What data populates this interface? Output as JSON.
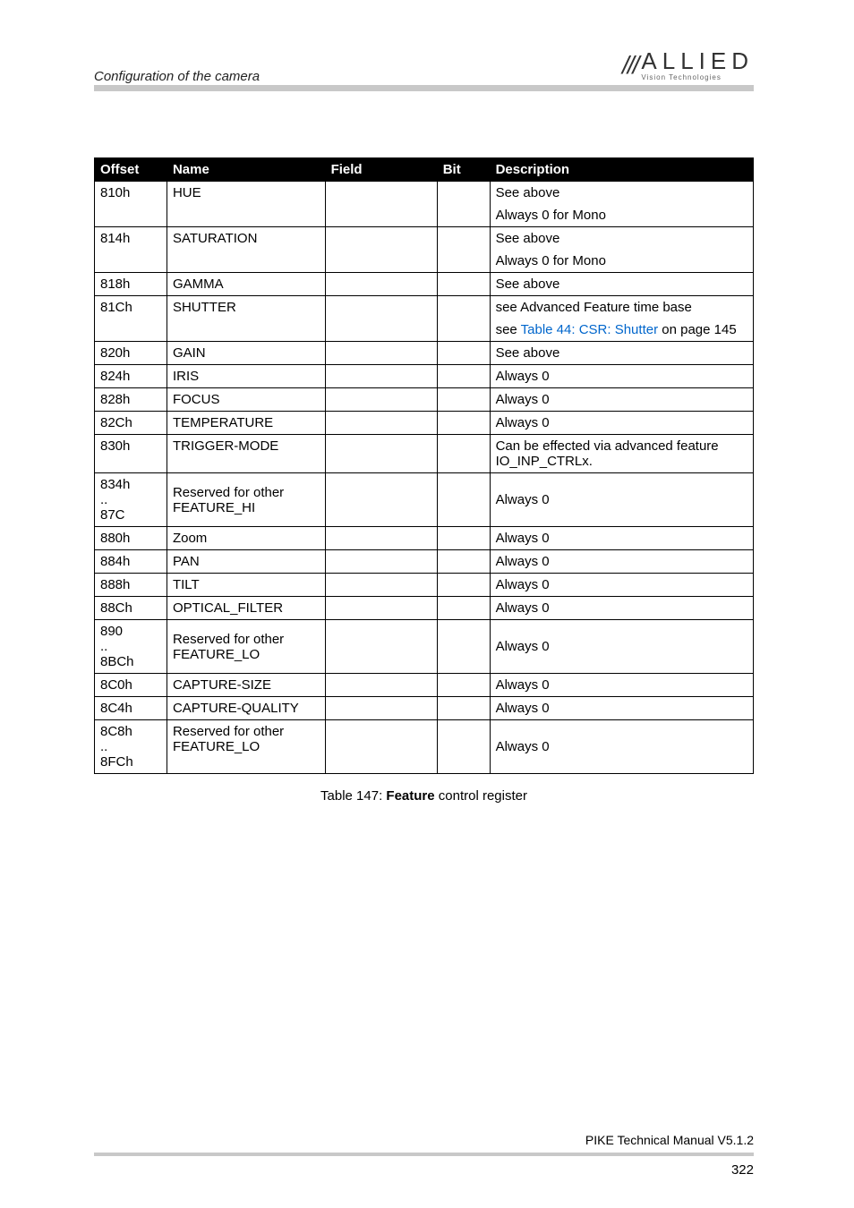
{
  "header": {
    "section_title": "Configuration of the camera",
    "logo_slashes": "///",
    "logo_main": "ALLIED",
    "logo_sub": "Vision Technologies"
  },
  "table": {
    "headers": {
      "offset": "Offset",
      "name": "Name",
      "field": "Field",
      "bit": "Bit",
      "description": "Description"
    },
    "col_widths": [
      "11%",
      "24%",
      "17%",
      "8%",
      "40%"
    ],
    "rows": [
      {
        "offset": "810h",
        "name": "HUE",
        "desc1": "See above",
        "desc2": "Always 0 for Mono"
      },
      {
        "offset": "814h",
        "name": "SATURATION",
        "desc1": "See above",
        "desc2": "Always 0 for Mono"
      },
      {
        "offset": "818h",
        "name": "GAMMA",
        "desc1": "See above"
      },
      {
        "offset": "81Ch",
        "name": "SHUTTER",
        "desc1": "see Advanced Feature time base",
        "desc2_pre": "see ",
        "desc2_link": "Table 44: CSR: Shutter",
        "desc2_post": " on page 145"
      },
      {
        "offset": "820h",
        "name": "GAIN",
        "desc1": "See above"
      },
      {
        "offset": "824h",
        "name": "IRIS",
        "desc1": "Always 0"
      },
      {
        "offset": "828h",
        "name": "FOCUS",
        "desc1": "Always 0"
      },
      {
        "offset": "82Ch",
        "name": "TEMPERATURE",
        "desc1": "Always 0"
      },
      {
        "offset": "830h",
        "name": "TRIGGER-MODE",
        "desc1": "Can be effected via advanced feature IO_INP_CTRLx."
      },
      {
        "offset_multi": "834h\n..\n87C",
        "name": "Reserved for other FEATURE_HI",
        "desc1": "Always 0"
      },
      {
        "offset": "880h",
        "name": "Zoom",
        "desc1": "Always 0"
      },
      {
        "offset": "884h",
        "name": "PAN",
        "desc1": "Always 0"
      },
      {
        "offset": "888h",
        "name": "TILT",
        "desc1": "Always 0"
      },
      {
        "offset": "88Ch",
        "name": "OPTICAL_FILTER",
        "desc1": "Always 0"
      },
      {
        "offset_multi": "890\n..\n8BCh",
        "name": "Reserved for other FEATURE_LO",
        "desc1": "Always 0"
      },
      {
        "offset": "8C0h",
        "name": "CAPTURE-SIZE",
        "desc1": "Always 0"
      },
      {
        "offset": "8C4h",
        "name": "CAPTURE-QUALITY",
        "desc1": "Always 0"
      },
      {
        "offset_multi": "8C8h\n..\n8FCh",
        "name": "Reserved for other FEATURE_LO",
        "desc1": "Always 0",
        "top_align_name": true
      }
    ]
  },
  "caption_pre": "Table 147: ",
  "caption_bold": "Feature",
  "caption_post": " control register",
  "footer": {
    "doc": "PIKE Technical Manual V5.1.2",
    "page": "322"
  }
}
